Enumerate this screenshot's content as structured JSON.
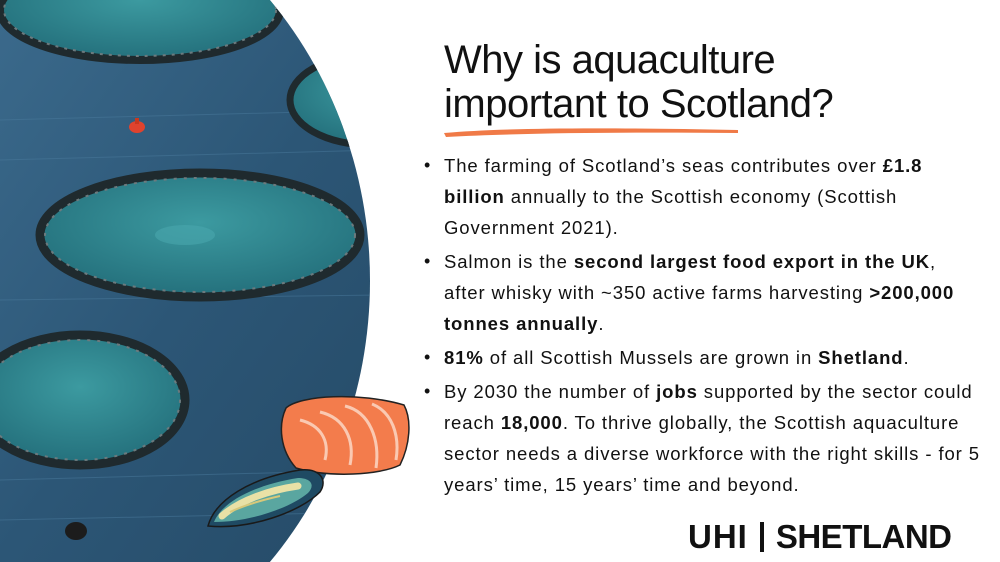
{
  "title": {
    "line1": "Why is aquaculture",
    "line2": "important to Scotland?"
  },
  "colors": {
    "accent": "#F07A47",
    "sea": "#2E5A7A",
    "pen_water": "#2E8C96",
    "salmon": "#F37C4C",
    "text": "#111111"
  },
  "bullets": [
    {
      "parts": [
        {
          "text": "The farming of Scotland’s seas contributes over ",
          "bold": false
        },
        {
          "text": "£1.8 billion",
          "bold": true
        },
        {
          "text": " annually to the Scottish economy (Scottish Government 2021).",
          "bold": false
        }
      ]
    },
    {
      "parts": [
        {
          "text": "Salmon is the ",
          "bold": false
        },
        {
          "text": "second largest food export in the UK",
          "bold": true
        },
        {
          "text": ", after whisky with ~350 active farms harvesting ",
          "bold": false
        },
        {
          "text": ">200,000 tonnes annually",
          "bold": true
        },
        {
          "text": ".",
          "bold": false
        }
      ]
    },
    {
      "parts": [
        {
          "text": "81%",
          "bold": true
        },
        {
          "text": " of all Scottish Mussels are grown in ",
          "bold": false
        },
        {
          "text": "Shetland",
          "bold": true
        },
        {
          "text": ".",
          "bold": false
        }
      ]
    },
    {
      "parts": [
        {
          "text": "By 2030 the number of ",
          "bold": false
        },
        {
          "text": "jobs",
          "bold": true
        },
        {
          "text": " supported by the sector could reach ",
          "bold": false
        },
        {
          "text": "18,000",
          "bold": true
        },
        {
          "text": ". To thrive globally, the Scottish aquaculture sector needs a diverse workforce with the right skills - for 5 years’ time, 15 years’ time and beyond.",
          "bold": false
        }
      ]
    }
  ],
  "bullet_symbol": "•",
  "logo": {
    "left": "UHI",
    "right": "SHETLAND"
  },
  "icons": [
    "fish-pens-photo",
    "salmon-fillet-icon",
    "mussel-icon",
    "buoy-icon"
  ]
}
